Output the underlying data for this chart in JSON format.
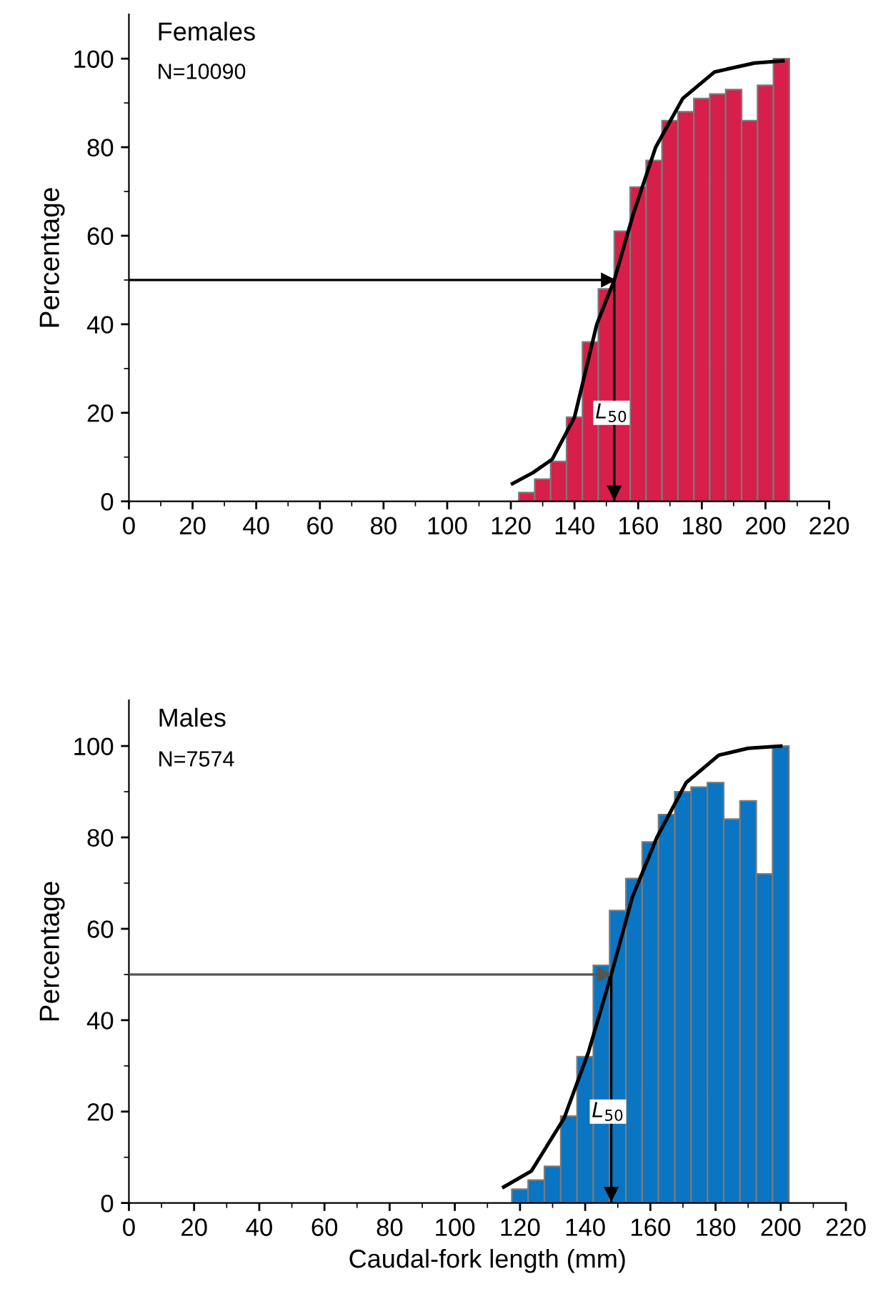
{
  "chart_data": [
    {
      "type": "histogram",
      "title": "Females",
      "subtitle": "N=10090",
      "ylabel": "Percentage",
      "color": "#d81e4a",
      "bins": [
        122.5,
        127.5,
        132.5,
        137.5,
        142.5,
        147.5,
        152.5,
        157.5,
        162.5,
        167.5,
        172.5,
        177.5,
        182.5,
        187.5,
        192.5,
        197.5,
        202.5,
        207.5
      ],
      "values": [
        2,
        5,
        9,
        19,
        36,
        48,
        61,
        71,
        77,
        86,
        88,
        91,
        92,
        93,
        86,
        94,
        100
      ],
      "series": [
        {
          "type": "line",
          "color": "#000000",
          "x": [
            120.5,
            127,
            133,
            140,
            147,
            152.5,
            158.5,
            165.5,
            174,
            184,
            196.5,
            205.5
          ],
          "values": [
            4,
            6.5,
            9.5,
            19,
            40,
            50,
            65,
            80,
            91,
            97,
            99,
            99.5
          ]
        }
      ],
      "ref_lines": [
        {
          "axis": "y",
          "value": 50,
          "color": "#000000"
        },
        {
          "axis": "x",
          "value": 152.5,
          "color": "#000000"
        }
      ],
      "annotations": [
        "L$_{50}$"
      ],
      "xlim": [
        0,
        220
      ],
      "xticks": [
        0,
        {
          "value": 10,
          "label": null
        },
        20,
        {
          "value": 30,
          "label": null
        },
        40,
        {
          "value": 50,
          "label": null
        },
        60,
        {
          "value": 70,
          "label": null
        },
        80,
        {
          "value": 90,
          "label": null
        },
        100,
        {
          "value": 110,
          "label": null
        },
        120,
        {
          "value": 130,
          "label": null
        },
        140,
        {
          "value": 150,
          "label": null
        },
        160,
        {
          "value": 170,
          "label": null
        },
        180,
        {
          "value": 190,
          "label": null
        },
        200,
        {
          "value": 210,
          "label": null
        },
        220
      ],
      "ylim": [
        0,
        110
      ],
      "yticks": [
        0,
        {
          "value": 10,
          "label": null
        },
        20,
        {
          "value": 30,
          "label": null
        },
        40,
        {
          "value": 50,
          "label": null
        },
        60,
        {
          "value": 70,
          "label": null
        },
        80,
        {
          "value": 90,
          "label": null
        },
        100
      ]
    },
    {
      "type": "histogram",
      "title": "Males",
      "subtitle": "N=7574",
      "ylabel": "Percentage",
      "xlabel": "Caudal-fork length (mm)",
      "color": "#0a75c2",
      "bins": [
        117.5,
        122.5,
        127.5,
        132.5,
        137.5,
        142.5,
        147.5,
        152.5,
        157.5,
        162.5,
        167.5,
        172.5,
        177.5,
        182.5,
        187.5,
        192.5,
        197.5,
        202.5
      ],
      "values": [
        3,
        5,
        8,
        19,
        32,
        52,
        64,
        71,
        79,
        85,
        90,
        91,
        92,
        84,
        88,
        72,
        100
      ],
      "series": [
        {
          "type": "line",
          "color": "#000000",
          "x": [
            115,
            123.5,
            133.5,
            141,
            148,
            154.5,
            162,
            171,
            181,
            190,
            200
          ],
          "values": [
            3.5,
            7,
            18.5,
            33,
            50,
            67,
            80,
            92,
            98,
            99.5,
            100
          ]
        }
      ],
      "ref_lines": [
        {
          "axis": "y",
          "value": 50,
          "color": "#555555"
        },
        {
          "axis": "x",
          "value": 148,
          "color": "#000000"
        }
      ],
      "annotations": [
        "L$_{50}$"
      ],
      "xlim": [
        0,
        220
      ],
      "xticks": [
        0,
        {
          "value": 10,
          "label": null
        },
        20,
        {
          "value": 30,
          "label": null
        },
        40,
        {
          "value": 50,
          "label": null
        },
        60,
        {
          "value": 70,
          "label": null
        },
        80,
        {
          "value": 90,
          "label": null
        },
        100,
        {
          "value": 110,
          "label": null
        },
        120,
        {
          "value": 130,
          "label": null
        },
        140,
        {
          "value": 150,
          "label": null
        },
        160,
        {
          "value": 170,
          "label": null
        },
        180,
        {
          "value": 190,
          "label": null
        },
        200,
        {
          "value": 210,
          "label": null
        },
        220
      ],
      "ylim": [
        0,
        110
      ],
      "yticks": [
        0,
        {
          "value": 10,
          "label": null
        },
        20,
        {
          "value": 30,
          "label": null
        },
        40,
        {
          "value": 50,
          "label": null
        },
        60,
        {
          "value": 70,
          "label": null
        },
        80,
        {
          "value": 90,
          "label": null
        },
        100
      ]
    }
  ]
}
